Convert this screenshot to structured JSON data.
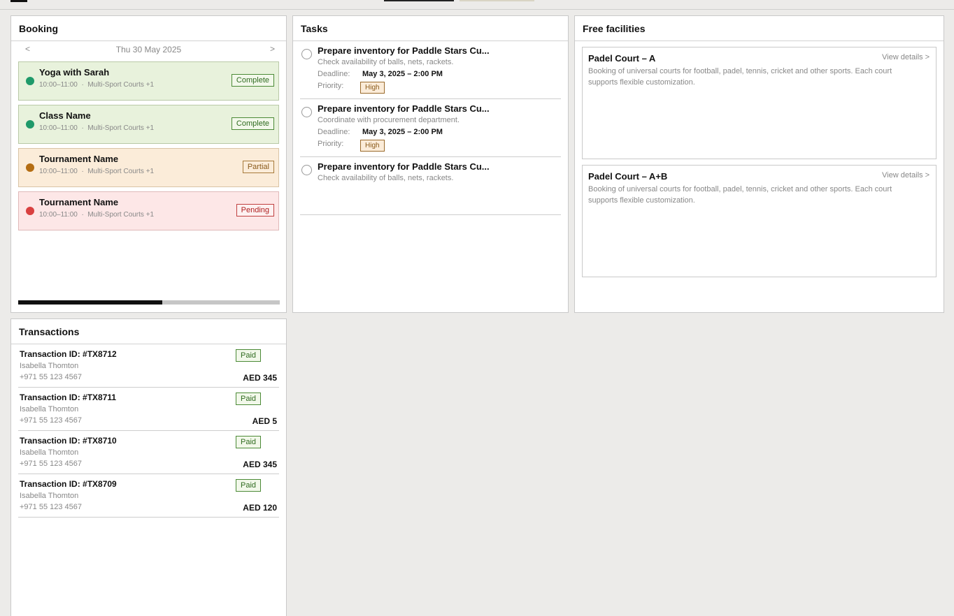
{
  "booking": {
    "title": "Booking",
    "prev": "<",
    "next": ">",
    "date": "Thu 30 May 2025",
    "progress_fraction": 0.55,
    "items": [
      {
        "title": "Yoga with Sarah",
        "time": "10:00–11:00",
        "sep": "·",
        "location": "Multi-Sport Courts +1",
        "status": "Complete",
        "dot_color": "#1f9a6a"
      },
      {
        "title": "Class Name",
        "time": "10:00–11:00",
        "sep": "·",
        "location": "Multi-Sport Courts +1",
        "status": "Complete",
        "dot_color": "#1f9a6a"
      },
      {
        "title": "Tournament Name",
        "time": "10:00–11:00",
        "sep": "·",
        "location": "Multi-Sport Courts +1",
        "status": "Partial",
        "dot_color": "#b46d12"
      },
      {
        "title": "Tournament Name",
        "time": "10:00–11:00",
        "sep": "·",
        "location": "Multi-Sport Courts +1",
        "status": "Pending",
        "dot_color": "#d94040"
      }
    ]
  },
  "tasks": {
    "title": "Tasks",
    "items": [
      {
        "title": "Prepare inventory for Paddle Stars Cu...",
        "desc": "Check availability of balls, nets, rackets.",
        "deadline_label": "Deadline:",
        "deadline": "May 3, 2025 – 2:00 PM",
        "priority_label": "Priority:",
        "priority": "High"
      },
      {
        "title": "Prepare inventory for Paddle Stars Cu...",
        "desc": "Coordinate with procurement department.",
        "deadline_label": "Deadline:",
        "deadline": "May 3, 2025 – 2:00 PM",
        "priority_label": "Priority:",
        "priority": "High"
      },
      {
        "title": "Prepare inventory for Paddle Stars Cu...",
        "desc": "Check availability of balls, nets, rackets."
      }
    ]
  },
  "facilities": {
    "title": "Free facilities",
    "items": [
      {
        "title": "Padel Court – A",
        "link": "View details >",
        "desc": "Booking of universal courts for football, padel, tennis, cricket and other sports. Each court supports flexible customization."
      },
      {
        "title": "Padel Court – A+B",
        "link": "View details >",
        "desc": "Booking of universal courts for football, padel, tennis, cricket and other sports. Each court supports flexible customization."
      }
    ]
  },
  "transactions": {
    "title": "Transactions",
    "items": [
      {
        "id": "Transaction ID: #TX8712",
        "name": "Isabella Thomton",
        "phone": "+971 55 123 4567",
        "status": "Paid",
        "amount": "AED 345"
      },
      {
        "id": "Transaction ID: #TX8711",
        "name": "Isabella Thomton",
        "phone": "+971 55 123 4567",
        "status": "Paid",
        "amount": "AED 5"
      },
      {
        "id": "Transaction ID: #TX8710",
        "name": "Isabella Thomton",
        "phone": "+971 55 123 4567",
        "status": "Paid",
        "amount": "AED 345"
      },
      {
        "id": "Transaction ID: #TX8709",
        "name": "Isabella Thomton",
        "phone": "+971 55 123 4567",
        "status": "Paid",
        "amount": "AED 120"
      }
    ]
  }
}
